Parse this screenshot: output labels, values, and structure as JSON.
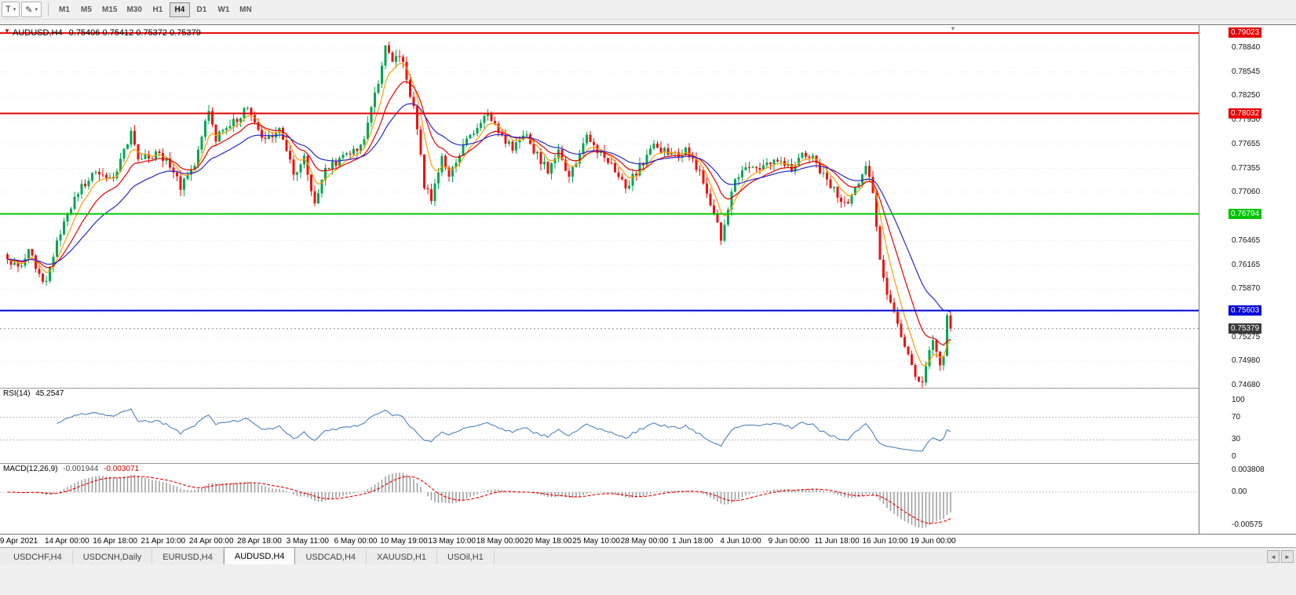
{
  "icons": {
    "chevron_down": "▾",
    "pencil": "✎",
    "triangle_down": "▼",
    "tab_scroll_left": "◄",
    "tab_scroll_right": "►"
  },
  "toolbar": {
    "text_tool_label": "T",
    "timeframes": [
      "M1",
      "M5",
      "M15",
      "M30",
      "H1",
      "H4",
      "D1",
      "W1",
      "MN"
    ],
    "active_timeframe": "H4"
  },
  "chart_data": {
    "type": "candlestick",
    "symbol": "AUDUSD",
    "timeframe": "H4",
    "symbol_period_label": "AUDUSD,H4",
    "ohlc_label": "0.75406 0.75412 0.75372 0.75379",
    "ohlc_current": {
      "open": 0.75406,
      "high": 0.75412,
      "low": 0.75372,
      "close": 0.75379
    },
    "y_ticks": [
      0.7884,
      0.78545,
      0.7825,
      0.7795,
      0.77655,
      0.77355,
      0.7706,
      0.7676,
      0.76465,
      0.76165,
      0.7587,
      0.7557,
      0.75275,
      0.7498,
      0.7468
    ],
    "x_labels": [
      "9 Apr 2021",
      "14 Apr 00:00",
      "16 Apr 18:00",
      "21 Apr 10:00",
      "24 Apr 00:00",
      "28 Apr 18:00",
      "3 May 11:00",
      "6 May 00:00",
      "10 May 19:00",
      "13 May 10:00",
      "18 May 00:00",
      "20 May 18:00",
      "25 May 10:00",
      "28 May 00:00",
      "1 Jun 18:00",
      "4 Jun 10:00",
      "9 Jun 00:00",
      "11 Jun 18:00",
      "16 Jun 10:00",
      "19 Jun 00:00"
    ],
    "hlines": [
      {
        "name": "resistance-upper",
        "price": 0.79023,
        "label": "0.79023",
        "color": "#e60000",
        "width": 2
      },
      {
        "name": "resistance-lower",
        "price": 0.78032,
        "label": "0.78032",
        "color": "#e60000",
        "width": 2
      },
      {
        "name": "support-mid",
        "price": 0.76794,
        "label": "0.76794",
        "color": "#00c400",
        "width": 2
      },
      {
        "name": "support-low",
        "price": 0.75603,
        "label": "0.75603",
        "color": "#0000d8",
        "width": 2
      }
    ],
    "current_price": 0.75379,
    "current_price_label": "0.75379",
    "current_price_tag_color": "#3a3a3a",
    "bull_color": "#00a651",
    "bear_color": "#f01010",
    "candle_count": 268,
    "moving_averages": [
      {
        "name": "ma-fast",
        "period": 6,
        "color": "#ff9c00"
      },
      {
        "name": "ma-mid",
        "period": 13,
        "color": "#e60000"
      },
      {
        "name": "ma-slow",
        "period": 26,
        "color": "#2929cc"
      }
    ],
    "price_path": [
      [
        0,
        0.7628
      ],
      [
        3,
        0.761
      ],
      [
        6,
        0.7636
      ],
      [
        10,
        0.7592
      ],
      [
        12,
        0.7612
      ],
      [
        14,
        0.7648
      ],
      [
        19,
        0.7702
      ],
      [
        25,
        0.7732
      ],
      [
        30,
        0.772
      ],
      [
        34,
        0.7768
      ],
      [
        35,
        0.7782
      ],
      [
        37,
        0.7745
      ],
      [
        41,
        0.7752
      ],
      [
        45,
        0.7748
      ],
      [
        49,
        0.7714
      ],
      [
        53,
        0.7738
      ],
      [
        56,
        0.7796
      ],
      [
        57,
        0.7806
      ],
      [
        59,
        0.7772
      ],
      [
        63,
        0.7788
      ],
      [
        68,
        0.7812
      ],
      [
        70,
        0.7795
      ],
      [
        73,
        0.7768
      ],
      [
        77,
        0.7782
      ],
      [
        81,
        0.7728
      ],
      [
        84,
        0.7748
      ],
      [
        87,
        0.7692
      ],
      [
        90,
        0.7735
      ],
      [
        95,
        0.7748
      ],
      [
        100,
        0.7762
      ],
      [
        102,
        0.779
      ],
      [
        105,
        0.7845
      ],
      [
        107,
        0.7888
      ],
      [
        109,
        0.7862
      ],
      [
        111,
        0.7878
      ],
      [
        113,
        0.7846
      ],
      [
        115,
        0.781
      ],
      [
        118,
        0.7716
      ],
      [
        120,
        0.77
      ],
      [
        123,
        0.7746
      ],
      [
        125,
        0.7722
      ],
      [
        129,
        0.7764
      ],
      [
        133,
        0.778
      ],
      [
        136,
        0.7802
      ],
      [
        139,
        0.7778
      ],
      [
        143,
        0.7762
      ],
      [
        146,
        0.778
      ],
      [
        150,
        0.7752
      ],
      [
        153,
        0.7732
      ],
      [
        156,
        0.7756
      ],
      [
        159,
        0.7722
      ],
      [
        164,
        0.778
      ],
      [
        167,
        0.7758
      ],
      [
        171,
        0.774
      ],
      [
        175,
        0.7712
      ],
      [
        178,
        0.773
      ],
      [
        183,
        0.7766
      ],
      [
        187,
        0.7752
      ],
      [
        192,
        0.7756
      ],
      [
        196,
        0.7732
      ],
      [
        200,
        0.7682
      ],
      [
        202,
        0.765
      ],
      [
        204,
        0.7688
      ],
      [
        206,
        0.7718
      ],
      [
        209,
        0.7742
      ],
      [
        213,
        0.7732
      ],
      [
        217,
        0.7746
      ],
      [
        222,
        0.7736
      ],
      [
        225,
        0.7758
      ],
      [
        228,
        0.7746
      ],
      [
        232,
        0.7722
      ],
      [
        235,
        0.7702
      ],
      [
        238,
        0.7692
      ],
      [
        241,
        0.7722
      ],
      [
        243,
        0.7736
      ],
      [
        245,
        0.7704
      ],
      [
        247,
        0.7624
      ],
      [
        249,
        0.7582
      ],
      [
        251,
        0.756
      ],
      [
        253,
        0.7528
      ],
      [
        255,
        0.7504
      ],
      [
        257,
        0.7478
      ],
      [
        259,
        0.7472
      ],
      [
        260,
        0.7492
      ],
      [
        261,
        0.751
      ],
      [
        262,
        0.7526
      ],
      [
        263,
        0.7512
      ],
      [
        264,
        0.7494
      ],
      [
        265,
        0.7506
      ],
      [
        266,
        0.7552
      ],
      [
        267,
        0.75379
      ]
    ],
    "indicators": {
      "rsi": {
        "name_label": "RSI(14)",
        "value_label": "45.2547",
        "value": 45.2547,
        "period": 14,
        "levels": [
          100,
          70,
          30,
          0
        ],
        "dashed_levels": [
          70,
          30
        ],
        "color": "#4f81bd",
        "ylim": [
          0,
          100
        ]
      },
      "macd": {
        "name_label": "MACD(12,26,9)",
        "value_label": "-0.001944",
        "signal_label": "-0.003071",
        "value": -0.001944,
        "signal_value": -0.003071,
        "fast": 12,
        "slow": 26,
        "signal_period": 9,
        "scale_values": [
          0.003808,
          0,
          -0.00575
        ],
        "scale_labels": [
          "0.003808",
          "0.00",
          "-0.00575"
        ],
        "hist_color": "#9b9b9b",
        "signal_color": "#e60000"
      }
    }
  },
  "tabs": {
    "items": [
      "USDCHF,H4",
      "USDCNH,Daily",
      "EURUSD,H4",
      "AUDUSD,H4",
      "USDCAD,H4",
      "XAUUSD,H1",
      "USOil,H1"
    ],
    "active": "AUDUSD,H4"
  }
}
